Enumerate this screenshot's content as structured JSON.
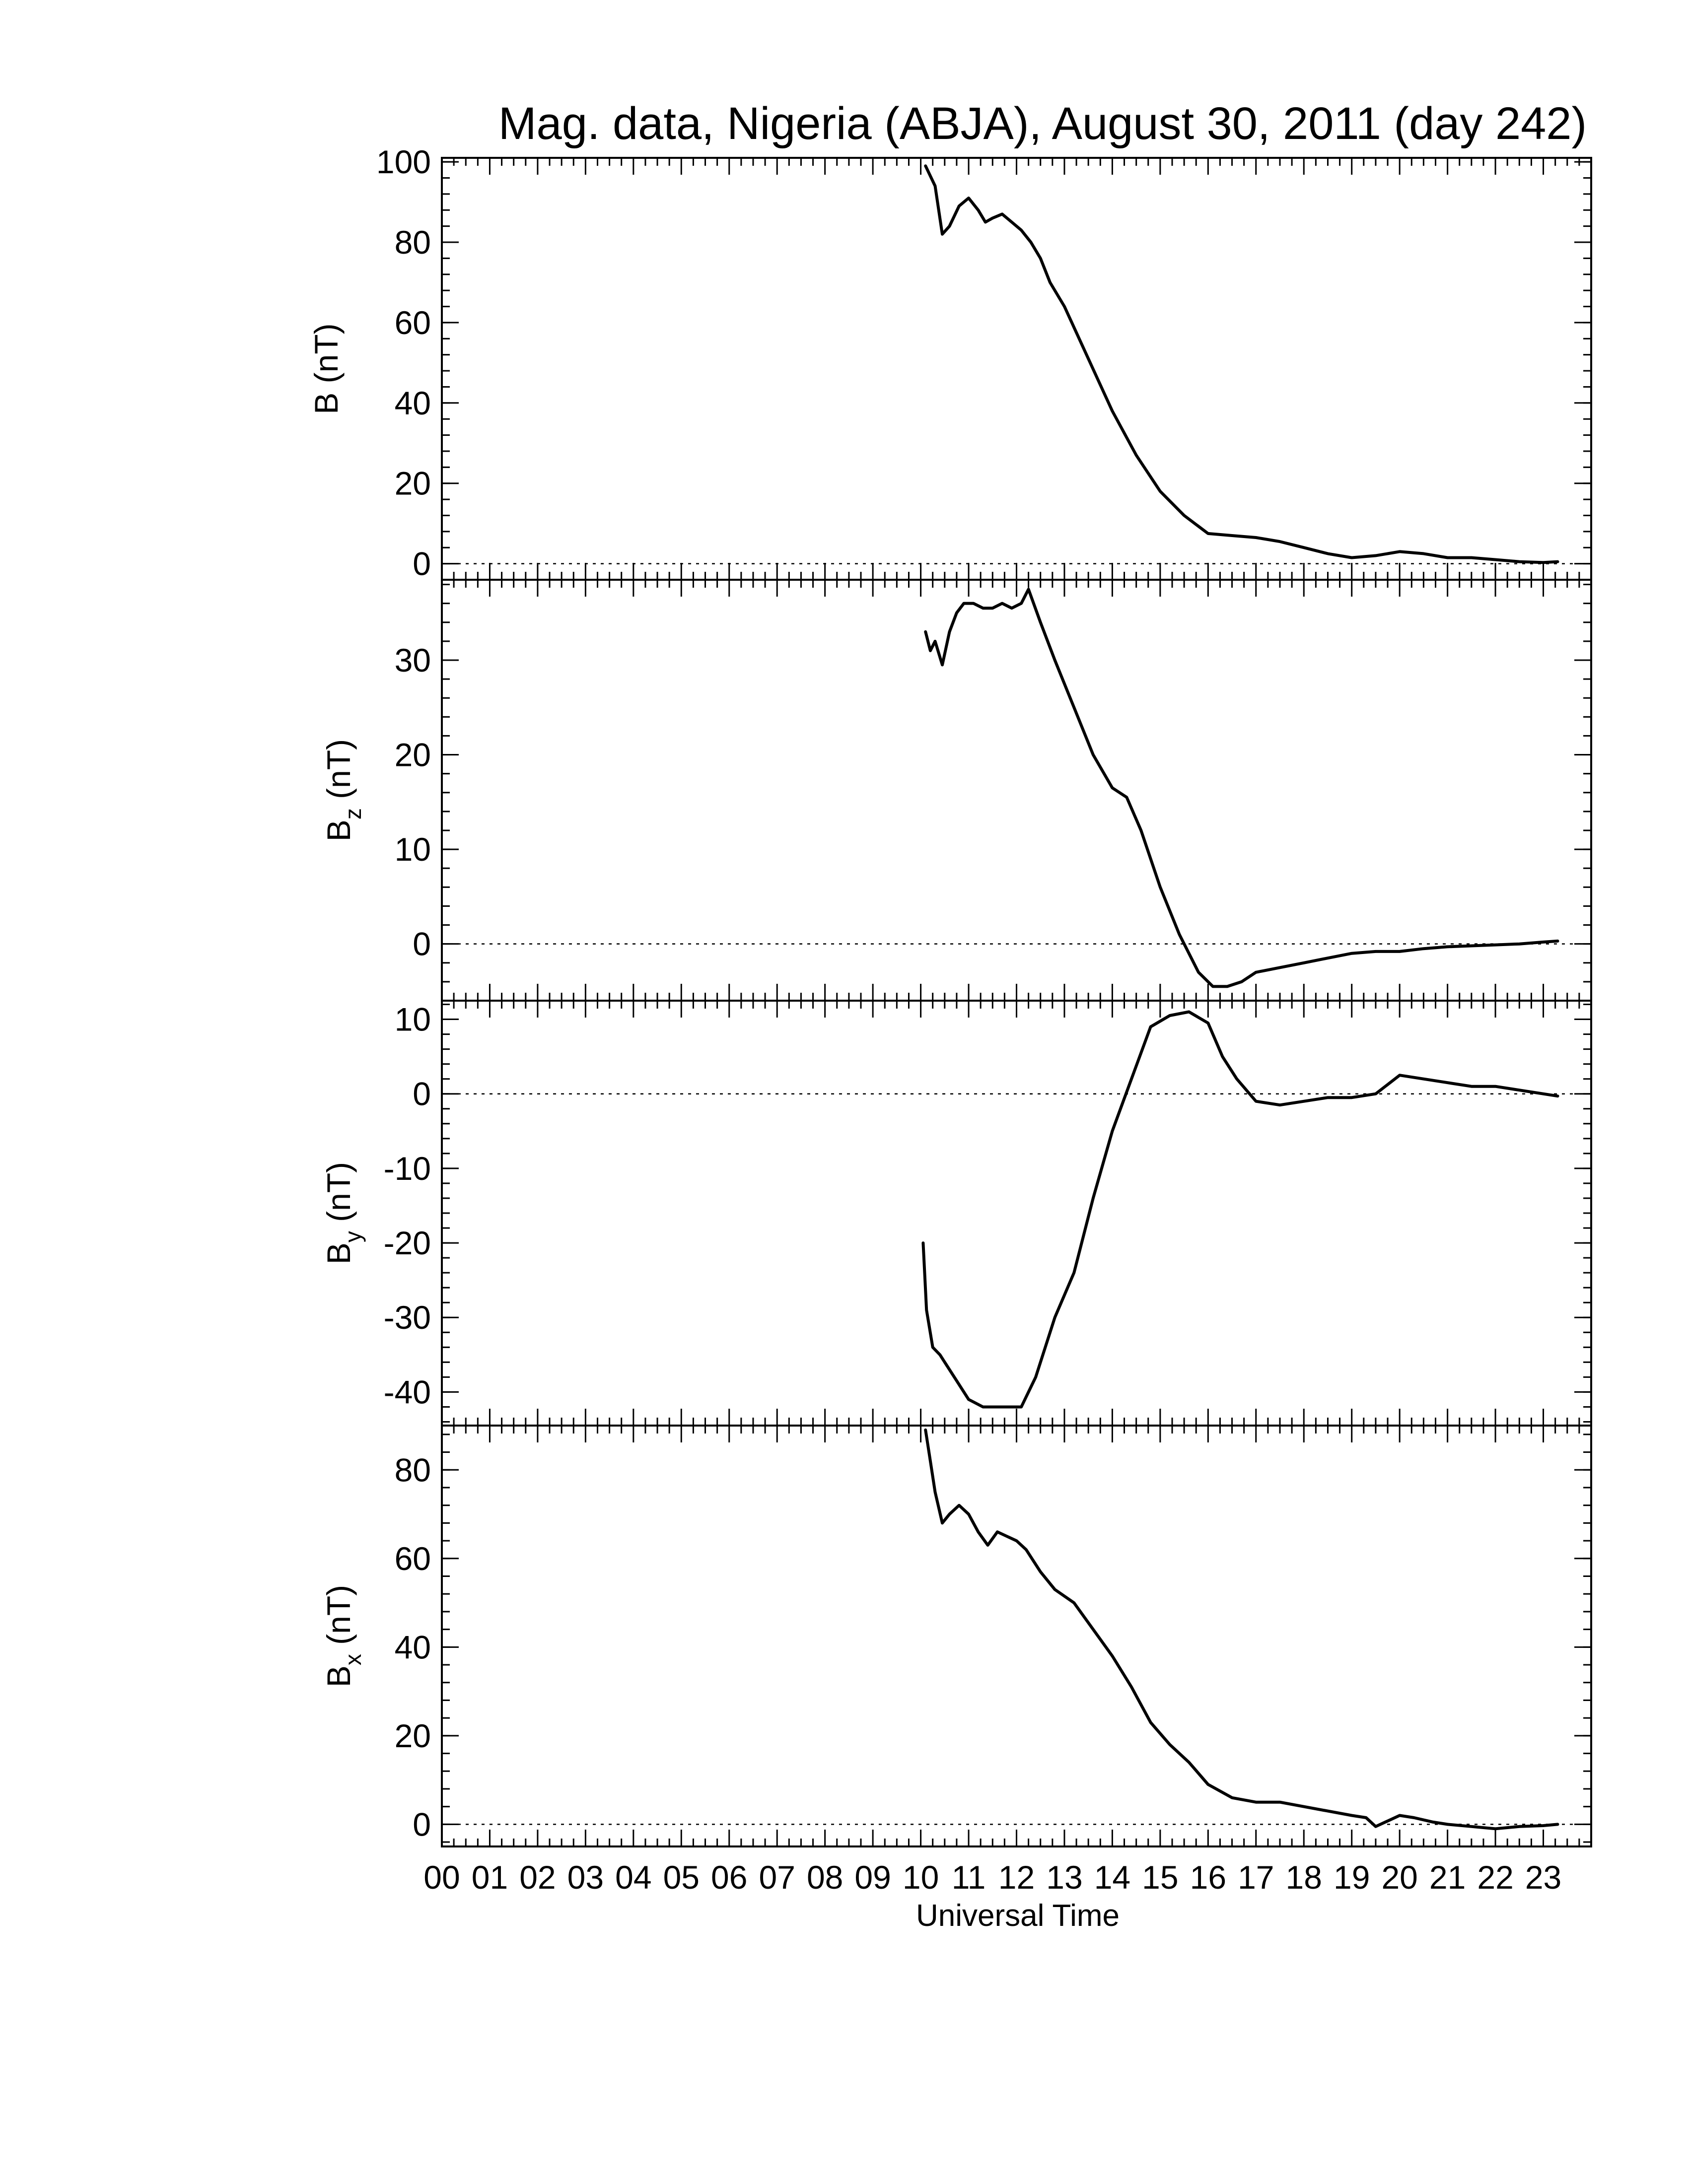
{
  "chart_data": {
    "type": "line",
    "title": "Mag. data, Nigeria (ABJA), August 30, 2011 (day 242)",
    "xlabel": "Universal Time",
    "x_tick_labels": [
      "00",
      "01",
      "02",
      "03",
      "04",
      "05",
      "06",
      "07",
      "08",
      "09",
      "10",
      "11",
      "12",
      "13",
      "14",
      "15",
      "16",
      "17",
      "18",
      "19",
      "20",
      "21",
      "22",
      "23"
    ],
    "xlim": [
      0,
      24
    ],
    "panels": [
      {
        "ylabel": "B",
        "ylabel_sub": "",
        "yunit": "(nT)",
        "ylim": [
          -4,
          101
        ],
        "yticks": [
          0,
          20,
          40,
          60,
          80,
          100
        ],
        "ytick_labels": [
          "0",
          "20",
          "40",
          "60",
          "80",
          "100"
        ],
        "x": [
          10.1,
          10.3,
          10.45,
          10.6,
          10.8,
          11.0,
          11.2,
          11.35,
          11.5,
          11.7,
          11.9,
          12.1,
          12.3,
          12.5,
          12.7,
          13.0,
          13.5,
          14.0,
          14.5,
          15.0,
          15.5,
          16.0,
          16.5,
          17.0,
          17.5,
          18.0,
          18.5,
          19.0,
          19.5,
          20.0,
          20.5,
          21.0,
          21.5,
          22.0,
          22.5,
          23.0,
          23.3
        ],
        "values": [
          99,
          94,
          82,
          84,
          89,
          91,
          88,
          85,
          86,
          87,
          85,
          83,
          80,
          76,
          70,
          64,
          51,
          38,
          27,
          18,
          12,
          7.5,
          7,
          6.5,
          5.5,
          4,
          2.5,
          1.5,
          2,
          3,
          2.5,
          1.5,
          1.5,
          1,
          0.5,
          0.3,
          0.5
        ]
      },
      {
        "ylabel": "B",
        "ylabel_sub": "z",
        "yunit": "(nT)",
        "ylim": [
          -6,
          38.5
        ],
        "yticks": [
          0,
          10,
          20,
          30
        ],
        "ytick_labels": [
          "0",
          "10",
          "20",
          "30"
        ],
        "x": [
          10.1,
          10.2,
          10.3,
          10.45,
          10.6,
          10.75,
          10.9,
          11.1,
          11.3,
          11.5,
          11.7,
          11.9,
          12.1,
          12.25,
          12.5,
          12.8,
          13.2,
          13.6,
          14.0,
          14.3,
          14.6,
          15.0,
          15.4,
          15.8,
          16.1,
          16.4,
          16.7,
          17.0,
          17.5,
          18.0,
          18.5,
          19.0,
          19.5,
          20.0,
          20.5,
          21.0,
          21.5,
          22.0,
          22.5,
          23.0,
          23.3
        ],
        "values": [
          33,
          31,
          32,
          29.5,
          33,
          35,
          36,
          36,
          35.5,
          35.5,
          36,
          35.5,
          36,
          37.5,
          34,
          30,
          25,
          20,
          16.5,
          15.5,
          12,
          6,
          1,
          -3,
          -4.5,
          -4.5,
          -4,
          -3,
          -2.5,
          -2,
          -1.5,
          -1,
          -0.8,
          -0.8,
          -0.5,
          -0.3,
          -0.2,
          -0.1,
          0,
          0.2,
          0.3
        ]
      },
      {
        "ylabel": "B",
        "ylabel_sub": "y",
        "yunit": "(nT)",
        "ylim": [
          -44.5,
          12.5
        ],
        "yticks": [
          -40,
          -30,
          -20,
          -10,
          0,
          10
        ],
        "ytick_labels": [
          "-40",
          "-30",
          "-20",
          "-10",
          "0",
          "10"
        ],
        "x": [
          10.05,
          10.12,
          10.25,
          10.4,
          10.6,
          10.8,
          11.0,
          11.3,
          11.6,
          11.9,
          12.1,
          12.4,
          12.8,
          13.2,
          13.6,
          14.0,
          14.4,
          14.8,
          15.2,
          15.6,
          16.0,
          16.3,
          16.6,
          17.0,
          17.5,
          18.0,
          18.5,
          19.0,
          19.5,
          20.0,
          20.5,
          21.0,
          21.5,
          22.0,
          22.5,
          23.0,
          23.3
        ],
        "values": [
          -20,
          -29,
          -34,
          -35,
          -37,
          -39,
          -41,
          -42,
          -42,
          -42,
          -42,
          -38,
          -30,
          -24,
          -14,
          -5,
          2,
          9,
          10.5,
          11,
          9.5,
          5,
          2,
          -1,
          -1.5,
          -1,
          -0.5,
          -0.5,
          0,
          2.5,
          2,
          1.5,
          1,
          1,
          0.5,
          0,
          -0.3
        ]
      },
      {
        "ylabel": "B",
        "ylabel_sub": "x",
        "yunit": "(nT)",
        "ylim": [
          -5,
          90
        ],
        "yticks": [
          0,
          20,
          40,
          60,
          80
        ],
        "ytick_labels": [
          "0",
          "20",
          "40",
          "60",
          "80"
        ],
        "x": [
          10.1,
          10.2,
          10.3,
          10.45,
          10.6,
          10.8,
          11.0,
          11.2,
          11.4,
          11.6,
          11.8,
          12.0,
          12.2,
          12.5,
          12.8,
          13.2,
          13.6,
          14.0,
          14.4,
          14.8,
          15.2,
          15.6,
          16.0,
          16.5,
          17.0,
          17.5,
          18.0,
          18.5,
          19.0,
          19.3,
          19.5,
          19.7,
          20.0,
          20.3,
          20.7,
          21.0,
          21.5,
          22.0,
          22.5,
          23.0,
          23.3
        ],
        "values": [
          89,
          82,
          75,
          68,
          70,
          72,
          70,
          66,
          63,
          66,
          65,
          64,
          62,
          57,
          53,
          50,
          44,
          38,
          31,
          23,
          18,
          14,
          9,
          6,
          5,
          5,
          4,
          3,
          2,
          1.5,
          -0.5,
          0.5,
          2,
          1.5,
          0.5,
          0,
          -0.5,
          -1,
          -0.5,
          -0.3,
          0
        ]
      }
    ]
  }
}
